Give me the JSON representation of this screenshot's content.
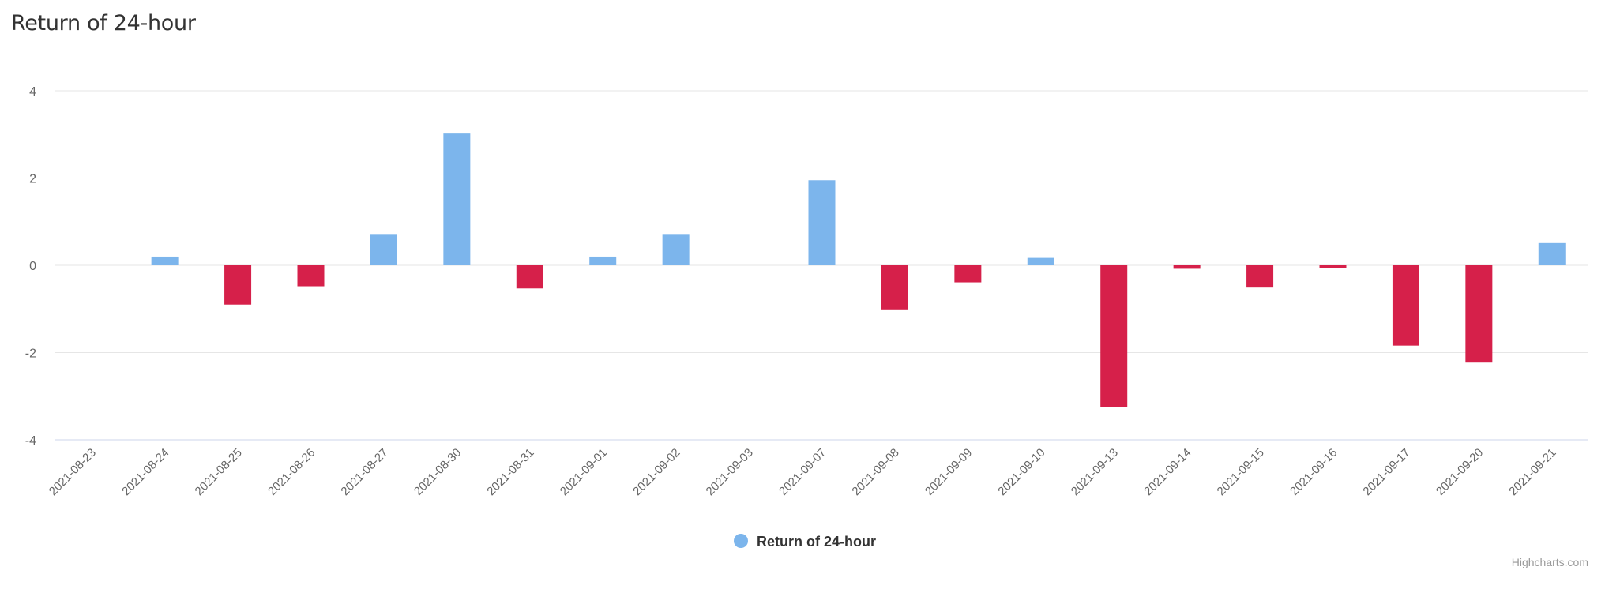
{
  "page": {
    "title": "Return of 24-hour",
    "credit": "Highcharts.com"
  },
  "colors": {
    "positive": "#7cb5ec",
    "negative": "#d6204a",
    "grid": "#e6e6e6",
    "axis": "#ccd6eb",
    "label": "#666666"
  },
  "chart_data": {
    "type": "bar",
    "title": "Return of 24-hour",
    "categories": [
      "2021-08-23",
      "2021-08-24",
      "2021-08-25",
      "2021-08-26",
      "2021-08-27",
      "2021-08-30",
      "2021-08-31",
      "2021-09-01",
      "2021-09-02",
      "2021-09-03",
      "2021-09-07",
      "2021-09-08",
      "2021-09-09",
      "2021-09-10",
      "2021-09-13",
      "2021-09-14",
      "2021-09-15",
      "2021-09-16",
      "2021-09-17",
      "2021-09-20",
      "2021-09-21"
    ],
    "series": [
      {
        "name": "Return of 24-hour",
        "values": [
          0,
          0.2,
          -0.9,
          -0.48,
          0.7,
          3.02,
          -0.53,
          0.2,
          0.7,
          0,
          1.95,
          -1.01,
          -0.39,
          0.17,
          -3.25,
          -0.08,
          -0.51,
          -0.06,
          -1.84,
          -2.23,
          0.51
        ]
      }
    ],
    "yticks": [
      -4,
      -2,
      0,
      2,
      4
    ],
    "ylim": [
      -4,
      4
    ],
    "grid": true,
    "legend": "bottom-center"
  }
}
